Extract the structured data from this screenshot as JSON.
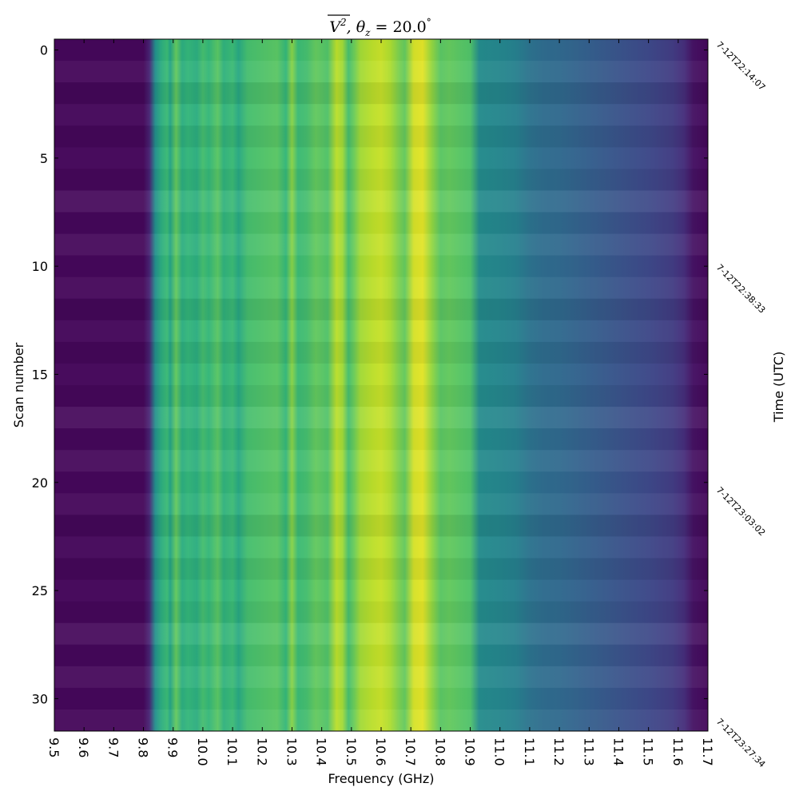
{
  "chart_data": {
    "type": "heatmap",
    "title": "V̄², θz = 20.0°",
    "title_parts": {
      "symbol": "V",
      "superscript": "2",
      "theta": "θ",
      "theta_sub": "z",
      "rest": " =  20.0",
      "degree": "°"
    },
    "xlabel": "Frequency (GHz)",
    "ylabel": "Scan number",
    "y2label": "Time (UTC)",
    "xlim": [
      9.5,
      11.7
    ],
    "ylim": [
      31.5,
      -0.5
    ],
    "x_ticks": [
      9.5,
      9.6,
      9.7,
      9.8,
      9.9,
      10.0,
      10.1,
      10.2,
      10.3,
      10.4,
      10.5,
      10.6,
      10.7,
      10.8,
      10.9,
      11.0,
      11.1,
      11.2,
      11.3,
      11.4,
      11.5,
      11.6,
      11.7
    ],
    "x_tick_labels": [
      "9.5",
      "9.6",
      "9.7",
      "9.8",
      "9.9",
      "10.0",
      "10.1",
      "10.2",
      "10.3",
      "10.4",
      "10.5",
      "10.6",
      "10.7",
      "10.8",
      "10.9",
      "11.0",
      "11.1",
      "11.2",
      "11.3",
      "11.4",
      "11.5",
      "11.6",
      "11.7"
    ],
    "y_ticks": [
      0,
      5,
      10,
      15,
      20,
      25,
      30
    ],
    "y_tick_labels": [
      "0",
      "5",
      "10",
      "15",
      "20",
      "25",
      "30"
    ],
    "right_ticks": [
      0,
      10.3,
      20.6,
      31.3
    ],
    "right_tick_labels": [
      "7-12T22:14:07",
      "7-12T22:38:33",
      "7-12T23:03:02",
      "7-12T23:27:34"
    ],
    "colormap": "viridis",
    "n_scans": 32,
    "frequency_profile": [
      [
        9.5,
        0.02
      ],
      [
        9.8,
        0.02
      ],
      [
        9.82,
        0.1
      ],
      [
        9.84,
        0.5
      ],
      [
        9.86,
        0.62
      ],
      [
        9.88,
        0.68
      ],
      [
        9.89,
        0.58
      ],
      [
        9.91,
        0.76
      ],
      [
        9.93,
        0.62
      ],
      [
        9.95,
        0.66
      ],
      [
        9.98,
        0.62
      ],
      [
        10.0,
        0.7
      ],
      [
        10.02,
        0.66
      ],
      [
        10.05,
        0.74
      ],
      [
        10.07,
        0.64
      ],
      [
        10.1,
        0.68
      ],
      [
        10.12,
        0.6
      ],
      [
        10.15,
        0.7
      ],
      [
        10.2,
        0.72
      ],
      [
        10.25,
        0.74
      ],
      [
        10.28,
        0.66
      ],
      [
        10.3,
        0.82
      ],
      [
        10.32,
        0.68
      ],
      [
        10.35,
        0.7
      ],
      [
        10.38,
        0.76
      ],
      [
        10.42,
        0.72
      ],
      [
        10.45,
        0.9
      ],
      [
        10.47,
        0.86
      ],
      [
        10.49,
        0.7
      ],
      [
        10.51,
        0.78
      ],
      [
        10.53,
        0.86
      ],
      [
        10.57,
        0.9
      ],
      [
        10.6,
        0.92
      ],
      [
        10.63,
        0.88
      ],
      [
        10.66,
        0.8
      ],
      [
        10.68,
        0.76
      ],
      [
        10.71,
        0.94
      ],
      [
        10.74,
        0.96
      ],
      [
        10.77,
        0.84
      ],
      [
        10.8,
        0.74
      ],
      [
        10.83,
        0.76
      ],
      [
        10.86,
        0.74
      ],
      [
        10.9,
        0.72
      ],
      [
        10.93,
        0.48
      ],
      [
        11.0,
        0.46
      ],
      [
        11.05,
        0.44
      ],
      [
        11.1,
        0.38
      ],
      [
        11.15,
        0.35
      ],
      [
        11.2,
        0.34
      ],
      [
        11.3,
        0.3
      ],
      [
        11.4,
        0.26
      ],
      [
        11.5,
        0.22
      ],
      [
        11.58,
        0.18
      ],
      [
        11.62,
        0.13
      ],
      [
        11.65,
        0.05
      ],
      [
        11.7,
        0.02
      ]
    ]
  }
}
